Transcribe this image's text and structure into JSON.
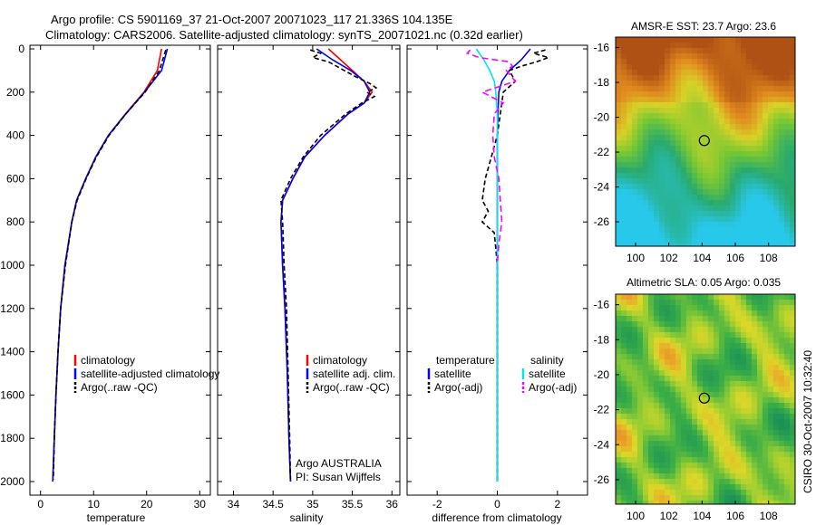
{
  "title": {
    "line1": "Argo profile: CS 5901169_37 21-Oct-2007 20071023_117 21.336S 104.135E",
    "line2": "Climatology: CARS2006. Satellite-adjusted climatology: synTS_20071021.nc (0.32d earlier)"
  },
  "watermark": "CSIRO 30-Oct-2007 10:32:40",
  "chart_data": [
    {
      "type": "line",
      "id": "temperature",
      "xlabel": "temperature",
      "ylabel": "",
      "xlim": [
        -2,
        32
      ],
      "ylim": [
        0,
        2050
      ],
      "y_reversed": true,
      "xticks": [
        0,
        10,
        20,
        30
      ],
      "yticks": [
        0,
        200,
        400,
        600,
        800,
        1000,
        1200,
        1400,
        1600,
        1800,
        2000
      ],
      "legend": [
        "climatology",
        "satellite-adjusted climatology",
        "Argo(..raw -QC)"
      ],
      "series": [
        {
          "name": "climatology",
          "color": "#ff0000",
          "dash": "",
          "depth": [
            0,
            100,
            200,
            300,
            400,
            500,
            600,
            700,
            800,
            1000,
            1200,
            1400,
            1600,
            1800,
            2000
          ],
          "values": [
            22.8,
            22.0,
            19.5,
            16.0,
            12.8,
            10.4,
            8.5,
            6.8,
            5.9,
            4.6,
            3.8,
            3.3,
            2.9,
            2.6,
            2.3
          ]
        },
        {
          "name": "satellite-adjusted climatology",
          "color": "#0000ff",
          "dash": "",
          "depth": [
            0,
            100,
            200,
            300,
            400,
            500,
            600,
            700,
            800,
            1000,
            1200,
            1400,
            1600,
            1800,
            2000
          ],
          "values": [
            23.9,
            22.8,
            19.6,
            16.1,
            12.8,
            10.4,
            8.5,
            6.8,
            5.9,
            4.6,
            3.8,
            3.3,
            2.9,
            2.6,
            2.3
          ]
        },
        {
          "name": "Argo(..raw -QC)",
          "color": "#000000",
          "dash": "5,3",
          "depth": [
            5,
            100,
            200,
            300,
            400,
            500,
            600,
            700,
            800,
            1000,
            1200,
            1400,
            1600,
            1800,
            1990
          ],
          "values": [
            23.6,
            22.4,
            19.7,
            16.1,
            12.9,
            10.5,
            8.6,
            6.9,
            5.9,
            4.7,
            3.8,
            3.3,
            2.9,
            2.6,
            2.4
          ]
        }
      ]
    },
    {
      "type": "line",
      "id": "salinity",
      "xlabel": "salinity",
      "ylabel": "",
      "xlim": [
        33.8,
        36.1
      ],
      "ylim": [
        0,
        2050
      ],
      "y_reversed": true,
      "xticks": [
        34,
        34.5,
        35,
        35.5,
        36
      ],
      "legend": [
        "climatology",
        "satellite adj. clim.",
        "Argo(..raw -QC)"
      ],
      "annotation": [
        "Argo AUSTRALIA",
        "PI: Susan Wijffels"
      ],
      "series": [
        {
          "name": "climatology",
          "color": "#ff0000",
          "dash": "",
          "depth": [
            0,
            50,
            100,
            150,
            200,
            250,
            300,
            400,
            500,
            600,
            700,
            800,
            1000,
            1200,
            1500,
            1800,
            2000
          ],
          "values": [
            35.2,
            35.35,
            35.5,
            35.65,
            35.75,
            35.65,
            35.45,
            35.15,
            34.9,
            34.75,
            34.62,
            34.6,
            34.62,
            34.65,
            34.68,
            34.7,
            34.72
          ]
        },
        {
          "name": "satellite adj. clim.",
          "color": "#0000ff",
          "dash": "",
          "depth": [
            0,
            50,
            100,
            150,
            200,
            250,
            300,
            400,
            500,
            600,
            700,
            800,
            1000,
            1200,
            1500,
            1800,
            2000
          ],
          "values": [
            35.05,
            35.25,
            35.48,
            35.65,
            35.72,
            35.65,
            35.45,
            35.15,
            34.9,
            34.75,
            34.62,
            34.6,
            34.62,
            34.65,
            34.68,
            34.7,
            34.72
          ]
        },
        {
          "name": "Argo(..raw -QC)",
          "color": "#000000",
          "dash": "5,3",
          "depth": [
            5,
            20,
            40,
            60,
            80,
            100,
            130,
            160,
            180,
            200,
            220,
            250,
            300,
            400,
            500,
            600,
            700,
            800,
            1000,
            1200,
            1500,
            1800,
            1990
          ],
          "values": [
            34.97,
            35.1,
            35.0,
            35.2,
            35.3,
            35.4,
            35.55,
            35.72,
            35.8,
            35.68,
            35.78,
            35.62,
            35.42,
            35.1,
            34.88,
            34.72,
            34.6,
            34.62,
            34.64,
            34.67,
            34.69,
            34.71,
            34.72
          ]
        }
      ]
    },
    {
      "type": "line",
      "id": "difference",
      "xlabel": "difference from climatology",
      "ylabel": "",
      "xlim": [
        -3,
        3
      ],
      "ylim": [
        0,
        2050
      ],
      "y_reversed": true,
      "xticks": [
        -2,
        0,
        2
      ],
      "legend_columns": [
        {
          "header": "temperature",
          "items": [
            "satellite",
            "Argo(-adj)"
          ]
        },
        {
          "header": "salinity",
          "items": [
            "satellite",
            "Argo(-adj)"
          ]
        }
      ],
      "series": [
        {
          "name": "temperature satellite",
          "color": "#0000ff",
          "dash": "",
          "depth": [
            0,
            50,
            100,
            150,
            200,
            300,
            400,
            600,
            800,
            1000,
            2000
          ],
          "values": [
            1.1,
            0.8,
            0.4,
            0.15,
            0.05,
            0.02,
            0.0,
            0.0,
            0.0,
            0.0,
            0.0
          ]
        },
        {
          "name": "temperature Argo(-adj)",
          "color": "#000000",
          "dash": "5,3",
          "depth": [
            5,
            20,
            40,
            60,
            80,
            100,
            150,
            200,
            300,
            400,
            500,
            600,
            700,
            750,
            800,
            850,
            1000,
            1500,
            1990
          ],
          "values": [
            1.6,
            1.2,
            1.7,
            1.3,
            0.8,
            0.4,
            0.6,
            0.2,
            0.1,
            0.0,
            -0.2,
            -0.4,
            -0.5,
            -0.3,
            -0.5,
            -0.1,
            0.0,
            0.0,
            0.0
          ]
        },
        {
          "name": "salinity satellite",
          "color": "#00e5ee",
          "dash": "",
          "depth": [
            0,
            20,
            50,
            100,
            150,
            200,
            300,
            500,
            800,
            1000,
            2000
          ],
          "values": [
            -0.7,
            -0.6,
            -0.45,
            -0.25,
            -0.1,
            -0.05,
            0.0,
            0.0,
            0.0,
            0.0,
            0.0
          ]
        },
        {
          "name": "salinity Argo(-adj)",
          "color": "#ff00ff",
          "dash": "7,4",
          "depth": [
            5,
            20,
            40,
            60,
            80,
            100,
            150,
            200,
            250,
            300,
            400,
            500,
            600,
            700,
            800,
            900,
            1000
          ],
          "values": [
            -0.9,
            -1.0,
            -0.6,
            0.4,
            0.5,
            0.3,
            0.6,
            -0.5,
            0.2,
            -0.1,
            -0.15,
            -0.1,
            0.05,
            0.1,
            0.15,
            0.05,
            0.0
          ]
        }
      ]
    },
    {
      "type": "heatmap",
      "id": "sst_map",
      "title": "AMSR-E SST: 23.7 Argo: 23.6",
      "xlim": [
        98.8,
        109.6
      ],
      "ylim": [
        -27.4,
        -15.4
      ],
      "xticks": [
        100,
        102,
        104,
        106,
        108
      ],
      "yticks": [
        -16,
        -18,
        -20,
        -22,
        -24,
        -26
      ],
      "marker": {
        "lon": 104.135,
        "lat": -21.336
      }
    },
    {
      "type": "heatmap",
      "id": "sla_map",
      "title": "Altimetric SLA: 0.05 Argo: 0.035",
      "xlim": [
        98.8,
        109.6
      ],
      "ylim": [
        -27.4,
        -15.4
      ],
      "xticks": [
        100,
        102,
        104,
        106,
        108
      ],
      "yticks": [
        -16,
        -18,
        -20,
        -22,
        -24,
        -26
      ],
      "marker": {
        "lon": 104.135,
        "lat": -21.336
      }
    }
  ]
}
